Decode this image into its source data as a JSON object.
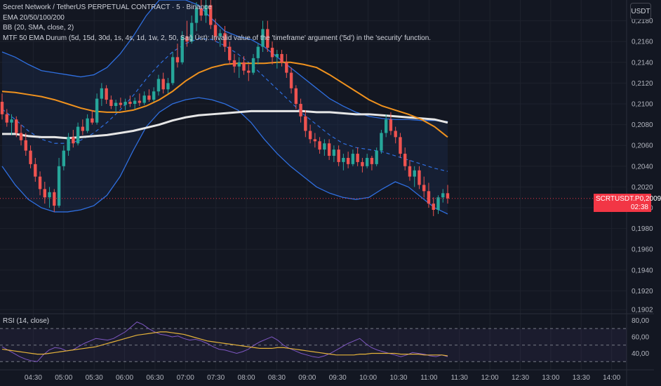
{
  "chart_data": {
    "type": "line",
    "legend_lines": [
      "Secret Network / TetherUS PERPETUAL CONTRACT · 5 · Binance",
      "EMA 20/50/100/200",
      "BB (20, SMA, close, 2)",
      "MTF 50 EMA Durum (5d, 15d, 30d, 1s, 4s, 1d, 1w, 2, 50, Sağ Üst): Invalid value of the 'timeframe' argument ('5d') in the 'security' function."
    ],
    "unit_button": "USDT",
    "x_ticks": [
      {
        "label": "04:30",
        "t": 4.5
      },
      {
        "label": "05:00",
        "t": 5.0
      },
      {
        "label": "05:30",
        "t": 5.5
      },
      {
        "label": "06:00",
        "t": 6.0
      },
      {
        "label": "06:30",
        "t": 6.5
      },
      {
        "label": "07:00",
        "t": 7.0
      },
      {
        "label": "07:30",
        "t": 7.5
      },
      {
        "label": "08:00",
        "t": 8.0
      },
      {
        "label": "08:30",
        "t": 8.5
      },
      {
        "label": "09:00",
        "t": 9.0
      },
      {
        "label": "09:30",
        "t": 9.5
      },
      {
        "label": "10:00",
        "t": 10.0
      },
      {
        "label": "10:30",
        "t": 10.5
      },
      {
        "label": "11:00",
        "t": 11.0
      },
      {
        "label": "11:30",
        "t": 11.5
      },
      {
        "label": "12:00",
        "t": 12.0
      },
      {
        "label": "12:30",
        "t": 12.5
      },
      {
        "label": "13:00",
        "t": 13.0
      },
      {
        "label": "13:30",
        "t": 13.5
      },
      {
        "label": "14:00",
        "t": 14.0
      }
    ],
    "x_range": [
      4.0,
      14.2
    ],
    "price_ticks": [
      "0,2180",
      "0,2160",
      "0,2140",
      "0,2120",
      "0,2100",
      "0,2080",
      "0,2060",
      "0,2040",
      "0,2020",
      "0,2000",
      "0,1980",
      "0,1960",
      "0,1940",
      "0,1920",
      "0,1902"
    ],
    "price_tick_values": [
      0.218,
      0.216,
      0.214,
      0.212,
      0.21,
      0.208,
      0.206,
      0.204,
      0.202,
      0.2,
      0.198,
      0.196,
      0.194,
      0.192,
      0.1902
    ],
    "price_range": [
      0.1898,
      0.22
    ],
    "current_price": {
      "symbol": "SCRTUSDT.P",
      "price": "0,2009",
      "countdown": "02:38",
      "value": 0.2009
    },
    "candles_ohlc": [
      [
        0.2102,
        0.211,
        0.2085,
        0.209
      ],
      [
        0.209,
        0.2095,
        0.2078,
        0.2082
      ],
      [
        0.2082,
        0.209,
        0.207,
        0.2085
      ],
      [
        0.2085,
        0.2088,
        0.2068,
        0.2072
      ],
      [
        0.2072,
        0.208,
        0.206,
        0.2065
      ],
      [
        0.2065,
        0.2072,
        0.205,
        0.2055
      ],
      [
        0.2055,
        0.206,
        0.2038,
        0.2042
      ],
      [
        0.2042,
        0.2048,
        0.2025,
        0.203
      ],
      [
        0.203,
        0.2035,
        0.2012,
        0.2018
      ],
      [
        0.2018,
        0.2025,
        0.2004,
        0.201
      ],
      [
        0.201,
        0.202,
        0.2,
        0.2015
      ],
      [
        0.2015,
        0.2018,
        0.1996,
        0.2002
      ],
      [
        0.2002,
        0.2048,
        0.2,
        0.204
      ],
      [
        0.204,
        0.206,
        0.2036,
        0.2055
      ],
      [
        0.2055,
        0.2072,
        0.205,
        0.2068
      ],
      [
        0.2068,
        0.2075,
        0.2058,
        0.2062
      ],
      [
        0.2062,
        0.2082,
        0.206,
        0.2078
      ],
      [
        0.2078,
        0.2085,
        0.207,
        0.2074
      ],
      [
        0.2074,
        0.209,
        0.2072,
        0.2086
      ],
      [
        0.2086,
        0.2094,
        0.208,
        0.2082
      ],
      [
        0.2082,
        0.211,
        0.208,
        0.2105
      ],
      [
        0.2105,
        0.212,
        0.2098,
        0.2115
      ],
      [
        0.2115,
        0.2118,
        0.21,
        0.2104
      ],
      [
        0.2104,
        0.2108,
        0.2095,
        0.2098
      ],
      [
        0.2098,
        0.2104,
        0.2092,
        0.2101
      ],
      [
        0.2101,
        0.2106,
        0.2096,
        0.2099
      ],
      [
        0.2099,
        0.2105,
        0.2094,
        0.2102
      ],
      [
        0.2102,
        0.2108,
        0.2097,
        0.21
      ],
      [
        0.21,
        0.2106,
        0.2095,
        0.2103
      ],
      [
        0.2103,
        0.211,
        0.2098,
        0.2101
      ],
      [
        0.2101,
        0.2112,
        0.2099,
        0.2108
      ],
      [
        0.2108,
        0.2114,
        0.2102,
        0.2104
      ],
      [
        0.2104,
        0.2116,
        0.2102,
        0.2112
      ],
      [
        0.2112,
        0.2128,
        0.2108,
        0.2124
      ],
      [
        0.2124,
        0.213,
        0.211,
        0.2114
      ],
      [
        0.2114,
        0.2125,
        0.211,
        0.212
      ],
      [
        0.212,
        0.215,
        0.2118,
        0.2145
      ],
      [
        0.2145,
        0.2158,
        0.2135,
        0.214
      ],
      [
        0.214,
        0.217,
        0.2138,
        0.2165
      ],
      [
        0.2165,
        0.218,
        0.2155,
        0.216
      ],
      [
        0.216,
        0.2185,
        0.2158,
        0.2178
      ],
      [
        0.2178,
        0.2198,
        0.217,
        0.2192
      ],
      [
        0.2192,
        0.22,
        0.218,
        0.2185
      ],
      [
        0.2185,
        0.22,
        0.2178,
        0.2195
      ],
      [
        0.2195,
        0.22,
        0.2172,
        0.2176
      ],
      [
        0.2176,
        0.2182,
        0.216,
        0.2165
      ],
      [
        0.2165,
        0.2172,
        0.2155,
        0.2168
      ],
      [
        0.2168,
        0.2175,
        0.215,
        0.2155
      ],
      [
        0.2155,
        0.216,
        0.2138,
        0.2142
      ],
      [
        0.2142,
        0.2148,
        0.213,
        0.2136
      ],
      [
        0.2136,
        0.2145,
        0.2125,
        0.214
      ],
      [
        0.214,
        0.2146,
        0.2128,
        0.2132
      ],
      [
        0.2132,
        0.2138,
        0.2122,
        0.213
      ],
      [
        0.213,
        0.2148,
        0.2128,
        0.2144
      ],
      [
        0.2144,
        0.2158,
        0.2138,
        0.2155
      ],
      [
        0.2155,
        0.218,
        0.215,
        0.2172
      ],
      [
        0.2172,
        0.218,
        0.215,
        0.2154
      ],
      [
        0.2154,
        0.216,
        0.2138,
        0.2145
      ],
      [
        0.2145,
        0.2152,
        0.2134,
        0.2148
      ],
      [
        0.2148,
        0.2152,
        0.2136,
        0.214
      ],
      [
        0.214,
        0.2148,
        0.2125,
        0.213
      ],
      [
        0.213,
        0.2135,
        0.211,
        0.2115
      ],
      [
        0.2115,
        0.2118,
        0.2095,
        0.21
      ],
      [
        0.21,
        0.2105,
        0.2082,
        0.2088
      ],
      [
        0.2088,
        0.2094,
        0.2068,
        0.2074
      ],
      [
        0.2074,
        0.208,
        0.2062,
        0.2066
      ],
      [
        0.2066,
        0.2072,
        0.2058,
        0.2064
      ],
      [
        0.2064,
        0.2068,
        0.2052,
        0.2056
      ],
      [
        0.2056,
        0.2066,
        0.205,
        0.2062
      ],
      [
        0.2062,
        0.2066,
        0.2046,
        0.205
      ],
      [
        0.205,
        0.206,
        0.2044,
        0.2056
      ],
      [
        0.2056,
        0.206,
        0.204,
        0.2044
      ],
      [
        0.2044,
        0.2052,
        0.2036,
        0.2048
      ],
      [
        0.2048,
        0.2054,
        0.2038,
        0.2042
      ],
      [
        0.2042,
        0.2056,
        0.204,
        0.2052
      ],
      [
        0.2052,
        0.2058,
        0.204,
        0.2044
      ],
      [
        0.2044,
        0.2048,
        0.2034,
        0.204
      ],
      [
        0.204,
        0.2052,
        0.2038,
        0.2048
      ],
      [
        0.2048,
        0.205,
        0.2036,
        0.2042
      ],
      [
        0.2042,
        0.2058,
        0.204,
        0.2055
      ],
      [
        0.2055,
        0.2075,
        0.2052,
        0.2072
      ],
      [
        0.2072,
        0.209,
        0.2068,
        0.2085
      ],
      [
        0.2085,
        0.2092,
        0.207,
        0.2074
      ],
      [
        0.2074,
        0.2078,
        0.2062,
        0.2068
      ],
      [
        0.2068,
        0.2072,
        0.2048,
        0.2052
      ],
      [
        0.2052,
        0.2058,
        0.2036,
        0.204
      ],
      [
        0.204,
        0.2046,
        0.2026,
        0.203
      ],
      [
        0.203,
        0.204,
        0.202,
        0.2036
      ],
      [
        0.2036,
        0.204,
        0.2018,
        0.2022
      ],
      [
        0.2022,
        0.203,
        0.201,
        0.2016
      ],
      [
        0.2016,
        0.2024,
        0.2,
        0.2004
      ],
      [
        0.2004,
        0.201,
        0.1992,
        0.1998
      ],
      [
        0.1998,
        0.2012,
        0.1994,
        0.201
      ],
      [
        0.201,
        0.2018,
        0.2005,
        0.2014
      ],
      [
        0.2014,
        0.2022,
        0.2004,
        0.2009
      ]
    ],
    "ema_orange": [
      0.2112,
      0.2111,
      0.2109,
      0.2107,
      0.2104,
      0.21,
      0.2096,
      0.2093,
      0.2092,
      0.2092,
      0.2094,
      0.2098,
      0.2104,
      0.2112,
      0.2122,
      0.213,
      0.2135,
      0.2138,
      0.2139,
      0.2139,
      0.2139,
      0.214,
      0.214,
      0.2138,
      0.2135,
      0.2128,
      0.212,
      0.2112,
      0.2104,
      0.2098,
      0.2094,
      0.209,
      0.2085,
      0.2078,
      0.2068
    ],
    "ema_white": [
      0.2071,
      0.2071,
      0.2069,
      0.2068,
      0.2068,
      0.2067,
      0.2068,
      0.2069,
      0.207,
      0.2072,
      0.2074,
      0.2077,
      0.208,
      0.2084,
      0.2087,
      0.2089,
      0.209,
      0.2091,
      0.2092,
      0.2093,
      0.2093,
      0.2093,
      0.2093,
      0.2093,
      0.2092,
      0.2092,
      0.2091,
      0.209,
      0.209,
      0.2089,
      0.2088,
      0.2087,
      0.2086,
      0.2085,
      0.2082
    ],
    "bb_upper": [
      0.215,
      0.2145,
      0.2138,
      0.2132,
      0.213,
      0.2128,
      0.2126,
      0.2128,
      0.2135,
      0.2148,
      0.2165,
      0.2185,
      0.22,
      0.22,
      0.22,
      0.2195,
      0.2182,
      0.217,
      0.2165,
      0.2162,
      0.2155,
      0.2145,
      0.2135,
      0.2125,
      0.2115,
      0.2105,
      0.2098,
      0.2092,
      0.2088,
      0.2086,
      0.2085,
      0.2085,
      0.2084,
      0.2084,
      0.2083
    ],
    "bb_middle": [
      0.2095,
      0.2085,
      0.2074,
      0.2066,
      0.2062,
      0.2062,
      0.2065,
      0.2072,
      0.2082,
      0.2094,
      0.2108,
      0.2124,
      0.2138,
      0.215,
      0.2158,
      0.2163,
      0.2162,
      0.2156,
      0.2148,
      0.2138,
      0.2126,
      0.2114,
      0.2102,
      0.209,
      0.208,
      0.207,
      0.2062,
      0.2058,
      0.2056,
      0.2054,
      0.205,
      0.2046,
      0.2042,
      0.2038,
      0.2035
    ],
    "bb_lower": [
      0.204,
      0.2022,
      0.2008,
      0.2,
      0.1996,
      0.1996,
      0.1998,
      0.2002,
      0.2012,
      0.203,
      0.2055,
      0.2078,
      0.2092,
      0.21,
      0.2104,
      0.2106,
      0.2104,
      0.21,
      0.2094,
      0.2082,
      0.2066,
      0.2052,
      0.204,
      0.203,
      0.202,
      0.2014,
      0.201,
      0.2008,
      0.201,
      0.2018,
      0.2025,
      0.202,
      0.201,
      0.2,
      0.1994
    ],
    "rsi": {
      "label": "RSI (14, close)",
      "ticks": [
        "80,00",
        "60,00",
        "40,00"
      ],
      "tick_values": [
        80,
        60,
        40
      ],
      "range": [
        20,
        88
      ],
      "upper_band": 70,
      "middle_band": 50,
      "lower_band": 30,
      "rsi_line": [
        48,
        44,
        40,
        36,
        33,
        31,
        30,
        38,
        44,
        47,
        46,
        43,
        44,
        48,
        52,
        55,
        58,
        57,
        56,
        58,
        62,
        66,
        72,
        78,
        75,
        70,
        66,
        63,
        62,
        60,
        61,
        58,
        56,
        57,
        55,
        52,
        48,
        45,
        44,
        42,
        40,
        42,
        45,
        50,
        54,
        57,
        60,
        56,
        50,
        46,
        43,
        40,
        38,
        36,
        35,
        37,
        40,
        44,
        48,
        52,
        55,
        58,
        52,
        47,
        44,
        42,
        40,
        38,
        36,
        38,
        41,
        40,
        39,
        37,
        36,
        38,
        36
      ],
      "ma_line": [
        45,
        44,
        43,
        42,
        41,
        40,
        39,
        39,
        40,
        41,
        42,
        43,
        44,
        45,
        46,
        47,
        48,
        50,
        52,
        54,
        56,
        58,
        60,
        62,
        63,
        64,
        65,
        66,
        66,
        65,
        64,
        63,
        61,
        59,
        57,
        55,
        54,
        53,
        52,
        51,
        50,
        49,
        48,
        47,
        46,
        46,
        46,
        47,
        47,
        46,
        45,
        44,
        43,
        42,
        41,
        40,
        39,
        38,
        38,
        38,
        38,
        39,
        39,
        40,
        40,
        40,
        40,
        40,
        39,
        39,
        39,
        39,
        38,
        38,
        38,
        38,
        37
      ]
    },
    "colors": {
      "background": "#131722",
      "grid": "#1e222d",
      "up": "#26a69a",
      "down": "#ef5350",
      "ema_orange": "#f0921e",
      "ema_white": "#e6e6e6",
      "bb": "#2f6fe0",
      "bb_fill": "#1a2a4a",
      "rsi_line": "#7e57c2",
      "rsi_ma": "#e5b33a",
      "price_label": "#f23645"
    }
  }
}
